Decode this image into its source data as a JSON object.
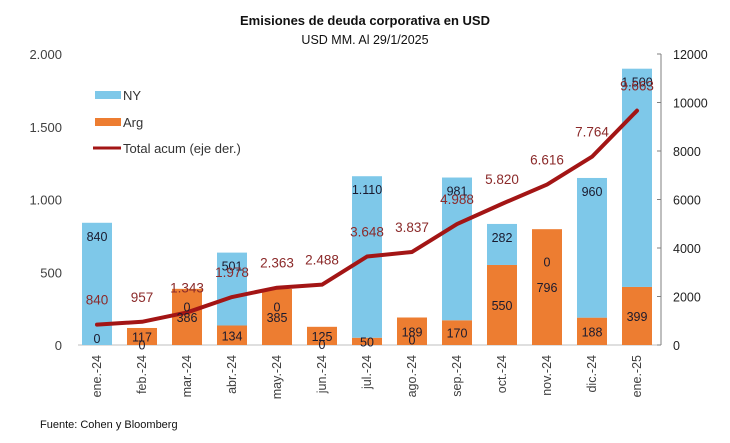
{
  "chart_data": {
    "type": "bar",
    "title": "Emisiones de deuda corporativa  en USD",
    "subtitle": "USD MM. Al 29/1/2025",
    "source": "Fuente: Cohen y Bloomberg",
    "categories": [
      "ene.-24",
      "feb.-24",
      "mar.-24",
      "abr.-24",
      "may.-24",
      "jun.-24",
      "jul.-24",
      "ago.-24",
      "sep.-24",
      "oct.-24",
      "nov.-24",
      "dic.-24",
      "ene.-25"
    ],
    "stacked": true,
    "series": [
      {
        "name": "Arg",
        "type": "bar",
        "axis": "left",
        "color": "#ED7D31",
        "values": [
          0,
          117,
          386,
          134,
          385,
          125,
          50,
          189,
          170,
          550,
          796,
          188,
          399
        ]
      },
      {
        "name": "NY",
        "type": "bar",
        "axis": "left",
        "color": "#7EC8E9",
        "values": [
          840,
          0,
          0,
          501,
          0,
          0,
          1110,
          0,
          981,
          282,
          0,
          960,
          1500
        ]
      },
      {
        "name": "Total acum (eje der.)",
        "type": "line",
        "axis": "right",
        "color": "#A31515",
        "values": [
          840,
          957,
          1343,
          1978,
          2363,
          2488,
          3648,
          3837,
          4988,
          5820,
          6616,
          7764,
          9663
        ]
      }
    ],
    "bar_labels": {
      "Arg": [
        "0",
        "117",
        "386",
        "134",
        "385",
        "125",
        "50",
        "189",
        "170",
        "550",
        "796",
        "188",
        "399"
      ],
      "NY": [
        "840",
        "0",
        "0",
        "501",
        "0",
        "0",
        "1.110",
        "0",
        "981",
        "282",
        "0",
        "960",
        "1.500"
      ]
    },
    "line_labels": [
      "840",
      "957",
      "1.343",
      "1.978",
      "2.363",
      "2.488",
      "3.648",
      "3.837",
      "4.988",
      "5.820",
      "6.616",
      "7.764",
      "9.663"
    ],
    "left_axis": {
      "ylim": [
        0,
        2000
      ],
      "ticks": [
        0,
        500,
        1000,
        1500,
        2000
      ],
      "tick_labels": [
        "0",
        "500",
        "1.000",
        "1.500",
        "2.000"
      ]
    },
    "right_axis": {
      "ylim": [
        0,
        12000
      ],
      "ticks": [
        0,
        2000,
        4000,
        6000,
        8000,
        10000,
        12000
      ],
      "tick_labels": [
        "0",
        "2000",
        "4000",
        "6000",
        "8000",
        "10000",
        "12000"
      ]
    },
    "xlabel": "",
    "ylabel": "",
    "grid": false,
    "legend": {
      "position": "top-left",
      "entries": [
        "NY",
        "Arg",
        "Total acum (eje der.)"
      ]
    }
  }
}
